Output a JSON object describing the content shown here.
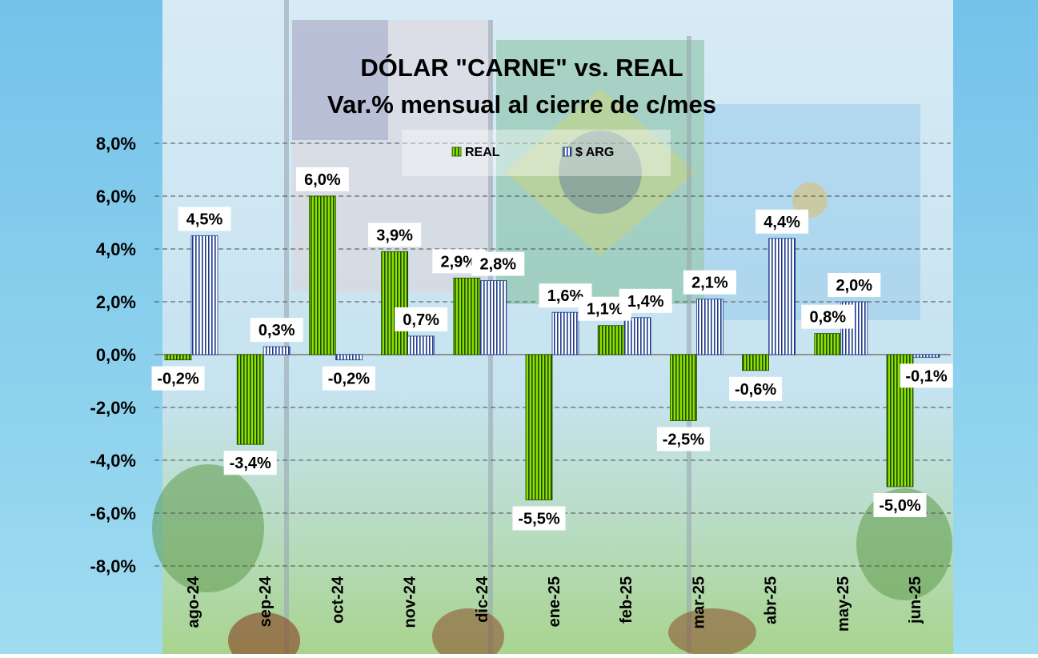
{
  "chart_data": {
    "type": "bar",
    "title": "DÓLAR \"CARNE\" vs. REAL",
    "subtitle": "Var.% mensual al cierre de c/mes",
    "categories": [
      "ago-24",
      "sep-24",
      "oct-24",
      "nov-24",
      "dic-24",
      "ene-25",
      "feb-25",
      "mar-25",
      "abr-25",
      "may-25",
      "jun-25"
    ],
    "series": [
      {
        "name": "REAL",
        "values": [
          -0.2,
          -3.4,
          6.0,
          3.9,
          2.9,
          -5.5,
          1.1,
          -2.5,
          -0.6,
          0.8,
          -5.0
        ],
        "labels": [
          "-0,2%",
          "-3,4%",
          "6,0%",
          "3,9%",
          "2,9%",
          "-5,5%",
          "1,1%",
          "-2,5%",
          "-0,6%",
          "0,8%",
          "-5,0%"
        ]
      },
      {
        "name": "$ ARG",
        "values": [
          4.5,
          0.3,
          -0.2,
          0.7,
          2.8,
          1.6,
          1.4,
          2.1,
          4.4,
          2.0,
          -0.1
        ],
        "labels": [
          "4,5%",
          "0,3%",
          "-0,2%",
          "0,7%",
          "2,8%",
          "1,6%",
          "1,4%",
          "2,1%",
          "4,4%",
          "2,0%",
          "-0,1%"
        ]
      }
    ],
    "ylim": [
      -8,
      8
    ],
    "yticks": [
      "8,0%",
      "6,0%",
      "4,0%",
      "2,0%",
      "0,0%",
      "-2,0%",
      "-4,0%",
      "-6,0%",
      "-8,0%"
    ],
    "grid": true,
    "legend_position": "top-center"
  },
  "colors": {
    "real_fill": "#8ee000",
    "real_stripe": "#1c4a00",
    "arg_fill": "#ffffff",
    "arg_stripe": "#1c3a8a",
    "gridline": "#555555",
    "page_bg": "#6fc0e8"
  }
}
